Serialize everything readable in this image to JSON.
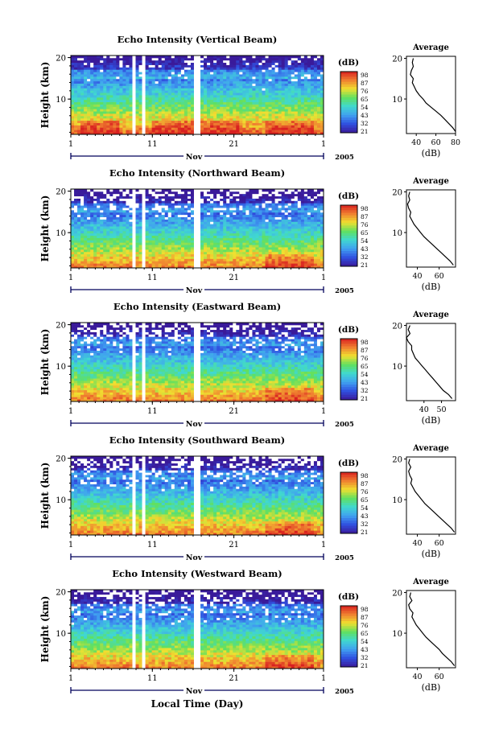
{
  "colors": {
    "scale": [
      "#3a1a9a",
      "#3050e0",
      "#40a0f0",
      "#40d8d0",
      "#60e060",
      "#f0e030",
      "#f08030",
      "#d82020"
    ],
    "gap": "#ffffff",
    "axis": "#000000",
    "time_axis": "#00005a"
  },
  "x_axis_label": "Local Time (Day)",
  "chart_data": [
    {
      "type": "heatmap",
      "title": "Echo Intensity (Vertical Beam)",
      "ylabel": "Height (km)",
      "yticks": [
        "20",
        "10"
      ],
      "ylim": [
        1.5,
        20.5
      ],
      "xlim": [
        1,
        32
      ],
      "xticks": [
        "1",
        "11",
        "21",
        "1"
      ],
      "month": "Nov",
      "year": "2005",
      "colorbar": {
        "label": "(dB)",
        "ticks": [
          "98",
          "87",
          "76",
          "65",
          "54",
          "43",
          "32",
          "21"
        ]
      },
      "data_gaps_days": [
        [
          8.6,
          9.0
        ],
        [
          9.6,
          10.3
        ],
        [
          14.1,
          14.3
        ],
        [
          16.0,
          17.0
        ],
        [
          24.3,
          24.5
        ]
      ],
      "surface_max_days": [
        [
          2,
          7
        ],
        [
          11,
          16
        ],
        [
          17,
          22
        ],
        [
          25,
          31
        ]
      ],
      "profile": {
        "title": "Average",
        "xlabel": "(dB)",
        "xticks": [
          "40",
          "60",
          "80"
        ],
        "xlim": [
          30,
          80
        ],
        "yticks": [
          "20",
          "10"
        ],
        "ylim": [
          1.5,
          20.5
        ],
        "height_km": [
          20,
          19,
          18,
          17,
          16,
          15,
          14,
          13,
          12,
          11,
          10,
          9,
          8,
          7,
          6,
          5,
          4,
          3,
          2
        ],
        "db": [
          37,
          36,
          37,
          35,
          34,
          37,
          36,
          38,
          40,
          43,
          47,
          50,
          55,
          60,
          65,
          69,
          73,
          77,
          80
        ]
      }
    },
    {
      "type": "heatmap",
      "title": "Echo Intensity (Northward Beam)",
      "ylabel": "Height (km)",
      "yticks": [
        "20",
        "10"
      ],
      "ylim": [
        1.5,
        20.5
      ],
      "xlim": [
        1,
        32
      ],
      "xticks": [
        "1",
        "11",
        "21",
        "1"
      ],
      "month": "Nov",
      "year": "2005",
      "colorbar": {
        "label": "(dB)",
        "ticks": [
          "98",
          "87",
          "76",
          "65",
          "54",
          "43",
          "32",
          "21"
        ]
      },
      "data_gaps_days": [
        [
          8.6,
          9.0
        ],
        [
          9.6,
          10.3
        ],
        [
          14.1,
          14.3
        ],
        [
          16.0,
          17.0
        ],
        [
          24.3,
          24.5
        ]
      ],
      "surface_max_days": [
        [
          25,
          31
        ]
      ],
      "profile": {
        "title": "Average",
        "xlabel": "(dB)",
        "xticks": [
          "40",
          "60"
        ],
        "xlim": [
          30,
          75
        ],
        "yticks": [
          "20",
          "10"
        ],
        "ylim": [
          1.5,
          20.5
        ],
        "height_km": [
          20,
          19,
          18,
          17,
          16,
          15,
          14,
          13,
          12,
          11,
          10,
          9,
          8,
          7,
          6,
          5,
          4,
          3,
          2
        ],
        "db": [
          33,
          32,
          33,
          31,
          32,
          34,
          33,
          35,
          37,
          40,
          43,
          46,
          50,
          54,
          58,
          62,
          66,
          70,
          73
        ]
      }
    },
    {
      "type": "heatmap",
      "title": "Echo Intensity (Eastward Beam)",
      "ylabel": "Height (km)",
      "yticks": [
        "20",
        "10"
      ],
      "ylim": [
        1.5,
        20.5
      ],
      "xlim": [
        1,
        32
      ],
      "xticks": [
        "1",
        "11",
        "21",
        "1"
      ],
      "month": "Nov",
      "year": "2005",
      "colorbar": {
        "label": "(dB)",
        "ticks": [
          "98",
          "87",
          "76",
          "65",
          "54",
          "43",
          "32",
          "21"
        ]
      },
      "data_gaps_days": [
        [
          8.6,
          9.0
        ],
        [
          9.6,
          10.3
        ],
        [
          14.1,
          14.3
        ],
        [
          16.0,
          17.0
        ],
        [
          24.3,
          24.5
        ]
      ],
      "surface_max_days": [
        [
          25,
          31
        ]
      ],
      "profile": {
        "title": "Average",
        "xlabel": "(dB)",
        "xticks": [
          "40",
          "50"
        ],
        "xlim": [
          30,
          58
        ],
        "yticks": [
          "20",
          "10"
        ],
        "ylim": [
          1.5,
          20.5
        ],
        "height_km": [
          20,
          19,
          18,
          17,
          16,
          15,
          14,
          13,
          12,
          11,
          10,
          9,
          8,
          7,
          6,
          5,
          4,
          3,
          2
        ],
        "db": [
          32,
          31,
          32,
          30,
          31,
          33,
          33,
          34,
          35,
          37,
          39,
          41,
          43,
          45,
          47,
          49,
          51,
          54,
          56
        ]
      }
    },
    {
      "type": "heatmap",
      "title": "Echo Intensity (Southward Beam)",
      "ylabel": "Height (km)",
      "yticks": [
        "20",
        "10"
      ],
      "ylim": [
        1.5,
        20.5
      ],
      "xlim": [
        1,
        32
      ],
      "xticks": [
        "1",
        "11",
        "21",
        "1"
      ],
      "month": "Nov",
      "year": "2005",
      "colorbar": {
        "label": "(dB)",
        "ticks": [
          "98",
          "87",
          "76",
          "65",
          "54",
          "43",
          "32",
          "21"
        ]
      },
      "data_gaps_days": [
        [
          8.6,
          9.0
        ],
        [
          9.6,
          10.3
        ],
        [
          14.1,
          14.3
        ],
        [
          16.0,
          17.0
        ],
        [
          24.3,
          24.5
        ]
      ],
      "surface_max_days": [
        [
          25,
          31
        ]
      ],
      "profile": {
        "title": "Average",
        "xlabel": "(dB)",
        "xticks": [
          "40",
          "60"
        ],
        "xlim": [
          30,
          75
        ],
        "yticks": [
          "20",
          "10"
        ],
        "ylim": [
          1.5,
          20.5
        ],
        "height_km": [
          20,
          19,
          18,
          17,
          16,
          15,
          14,
          13,
          12,
          11,
          10,
          9,
          8,
          7,
          6,
          5,
          4,
          3,
          2
        ],
        "db": [
          33,
          32,
          34,
          32,
          33,
          35,
          34,
          36,
          38,
          41,
          44,
          47,
          51,
          55,
          59,
          63,
          67,
          71,
          74
        ]
      }
    },
    {
      "type": "heatmap",
      "title": "Echo Intensity (Westward Beam)",
      "ylabel": "Height (km)",
      "yticks": [
        "20",
        "10"
      ],
      "ylim": [
        1.5,
        20.5
      ],
      "xlim": [
        1,
        32
      ],
      "xticks": [
        "1",
        "11",
        "21",
        "1"
      ],
      "month": "Nov",
      "year": "2005",
      "colorbar": {
        "label": "(dB)",
        "ticks": [
          "98",
          "87",
          "76",
          "65",
          "54",
          "43",
          "32",
          "21"
        ]
      },
      "data_gaps_days": [
        [
          8.6,
          9.0
        ],
        [
          9.6,
          10.3
        ],
        [
          14.1,
          14.3
        ],
        [
          16.0,
          17.0
        ],
        [
          24.3,
          24.5
        ]
      ],
      "surface_max_days": [
        [
          25,
          31
        ]
      ],
      "profile": {
        "title": "Average",
        "xlabel": "(dB)",
        "xticks": [
          "40",
          "60"
        ],
        "xlim": [
          30,
          75
        ],
        "yticks": [
          "20",
          "10"
        ],
        "ylim": [
          1.5,
          20.5
        ],
        "height_km": [
          20,
          19,
          18,
          17,
          16,
          15,
          14,
          13,
          12,
          11,
          10,
          9,
          8,
          7,
          6,
          5,
          4,
          3,
          2
        ],
        "db": [
          34,
          33,
          35,
          32,
          33,
          36,
          35,
          37,
          39,
          42,
          45,
          48,
          52,
          56,
          60,
          63,
          67,
          71,
          74
        ]
      }
    }
  ]
}
